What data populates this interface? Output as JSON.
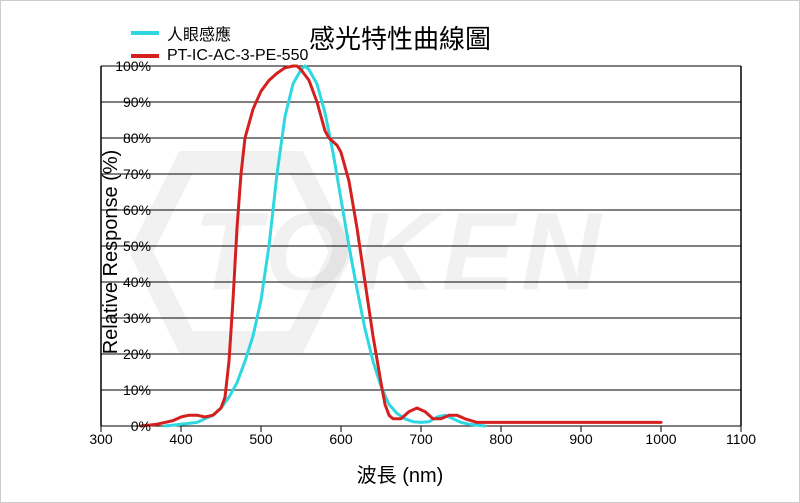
{
  "chart": {
    "type": "line",
    "title": "感光特性曲線圖",
    "title_fontsize": 26,
    "xlabel": "波長 (nm)",
    "ylabel": "Relative Response (%)",
    "label_fontsize": 20,
    "background_color": "#ffffff",
    "plot_border_color": "#000000",
    "grid_color": "#000000",
    "grid_width": 1,
    "xlim": [
      300,
      1100
    ],
    "ylim": [
      0,
      100
    ],
    "xticks": [
      300,
      400,
      500,
      600,
      700,
      800,
      900,
      1000,
      1100
    ],
    "yticks": [
      0,
      10,
      20,
      30,
      40,
      50,
      60,
      70,
      80,
      90,
      100
    ],
    "ytick_suffix": "%",
    "line_width": 3,
    "watermark_text": "TOKEN",
    "watermark_color": "rgba(120,120,120,0.10)",
    "legend": {
      "position": "top-left",
      "items": [
        {
          "label": "人眼感應",
          "color": "#2fd8e0"
        },
        {
          "label": "PT-IC-AC-3-PE-550",
          "color": "#d4201f"
        }
      ]
    },
    "series": [
      {
        "name": "human-eye",
        "color": "#2fd8e0",
        "points": [
          [
            380,
            0
          ],
          [
            400,
            0.5
          ],
          [
            420,
            1
          ],
          [
            440,
            3
          ],
          [
            450,
            5
          ],
          [
            460,
            8
          ],
          [
            470,
            12
          ],
          [
            480,
            18
          ],
          [
            490,
            25
          ],
          [
            500,
            35
          ],
          [
            510,
            50
          ],
          [
            520,
            70
          ],
          [
            530,
            86
          ],
          [
            540,
            95
          ],
          [
            550,
            99
          ],
          [
            555,
            100
          ],
          [
            560,
            99
          ],
          [
            570,
            95
          ],
          [
            580,
            87
          ],
          [
            590,
            76
          ],
          [
            600,
            63
          ],
          [
            610,
            50
          ],
          [
            620,
            38
          ],
          [
            630,
            27
          ],
          [
            640,
            18
          ],
          [
            650,
            11
          ],
          [
            660,
            6
          ],
          [
            670,
            3.5
          ],
          [
            680,
            2
          ],
          [
            690,
            1.2
          ],
          [
            700,
            1
          ],
          [
            710,
            1.2
          ],
          [
            720,
            2.5
          ],
          [
            730,
            3
          ],
          [
            740,
            2
          ],
          [
            750,
            1
          ],
          [
            760,
            0.5
          ],
          [
            780,
            0
          ]
        ]
      },
      {
        "name": "PT-IC-AC-3-PE-550",
        "color": "#d4201f",
        "points": [
          [
            350,
            0
          ],
          [
            370,
            0.5
          ],
          [
            390,
            1.5
          ],
          [
            400,
            2.5
          ],
          [
            410,
            3
          ],
          [
            420,
            3
          ],
          [
            430,
            2.5
          ],
          [
            440,
            3
          ],
          [
            450,
            5
          ],
          [
            455,
            8
          ],
          [
            460,
            18
          ],
          [
            465,
            35
          ],
          [
            470,
            55
          ],
          [
            475,
            70
          ],
          [
            480,
            80
          ],
          [
            490,
            88
          ],
          [
            500,
            93
          ],
          [
            510,
            96
          ],
          [
            520,
            98
          ],
          [
            530,
            99.5
          ],
          [
            540,
            100
          ],
          [
            545,
            100
          ],
          [
            550,
            99
          ],
          [
            560,
            96
          ],
          [
            570,
            90
          ],
          [
            580,
            82
          ],
          [
            585,
            80
          ],
          [
            595,
            78
          ],
          [
            600,
            76
          ],
          [
            610,
            68
          ],
          [
            620,
            55
          ],
          [
            630,
            40
          ],
          [
            640,
            25
          ],
          [
            650,
            12
          ],
          [
            655,
            6
          ],
          [
            660,
            3
          ],
          [
            665,
            2
          ],
          [
            675,
            2
          ],
          [
            685,
            4
          ],
          [
            695,
            5
          ],
          [
            705,
            4
          ],
          [
            715,
            2
          ],
          [
            725,
            2
          ],
          [
            735,
            3
          ],
          [
            745,
            3
          ],
          [
            755,
            2
          ],
          [
            770,
            1
          ],
          [
            800,
            1
          ],
          [
            850,
            1
          ],
          [
            900,
            1
          ],
          [
            950,
            1
          ],
          [
            1000,
            1
          ]
        ]
      }
    ]
  }
}
